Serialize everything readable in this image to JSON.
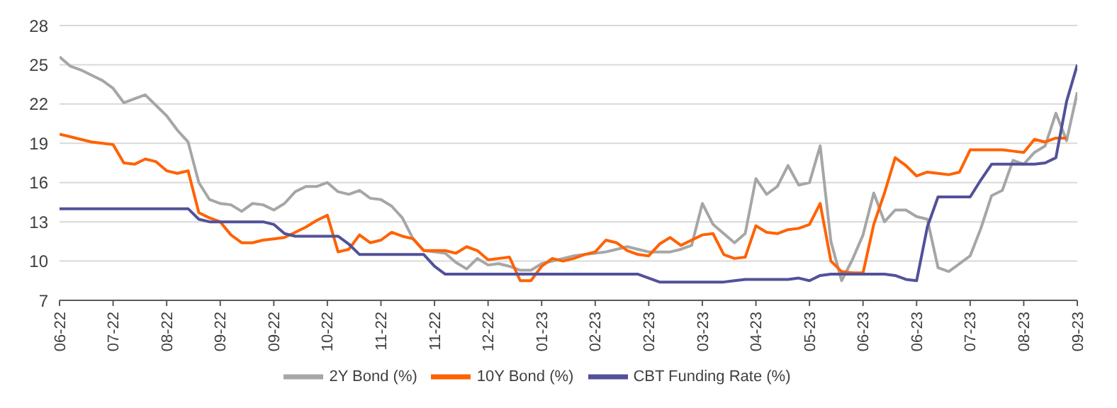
{
  "chart_data": {
    "type": "line",
    "ylim": [
      7,
      28
    ],
    "yticks": [
      7,
      10,
      13,
      16,
      19,
      22,
      25,
      28
    ],
    "categories": [
      "06-22",
      null,
      null,
      null,
      null,
      "07-22",
      null,
      null,
      null,
      null,
      "08-22",
      null,
      null,
      null,
      null,
      "09-22",
      null,
      null,
      null,
      null,
      "09-22",
      null,
      null,
      null,
      null,
      "10-22",
      null,
      null,
      null,
      null,
      "11-22",
      null,
      null,
      null,
      null,
      "11-22",
      null,
      null,
      null,
      null,
      "12-22",
      null,
      null,
      null,
      null,
      "01-23",
      null,
      null,
      null,
      null,
      "02-23",
      null,
      null,
      null,
      null,
      "02-23",
      null,
      null,
      null,
      null,
      "03-23",
      null,
      null,
      null,
      null,
      "04-23",
      null,
      null,
      null,
      null,
      "05-23",
      null,
      null,
      null,
      null,
      "06-23",
      null,
      null,
      null,
      null,
      "06-23",
      null,
      null,
      null,
      null,
      "07-23",
      null,
      null,
      null,
      null,
      "08-23",
      null,
      null,
      null,
      null,
      "09-23"
    ],
    "grid": "y",
    "legend": "bottom",
    "marker": "none",
    "line_style": "solid",
    "series": [
      {
        "name": "2Y Bond (%)",
        "color": "#a6a6a6",
        "values": [
          25.6,
          24.9,
          24.6,
          24.2,
          23.8,
          23.2,
          22.1,
          22.4,
          22.7,
          21.9,
          21.1,
          20.0,
          19.1,
          16.0,
          14.7,
          14.4,
          14.3,
          13.8,
          14.4,
          14.3,
          13.9,
          14.4,
          15.3,
          15.7,
          15.7,
          16.0,
          15.3,
          15.1,
          15.4,
          14.8,
          14.7,
          14.2,
          13.3,
          11.7,
          10.8,
          10.7,
          10.6,
          9.9,
          9.4,
          10.2,
          9.7,
          9.8,
          9.6,
          9.3,
          9.3,
          9.8,
          10.0,
          10.2,
          10.4,
          10.5,
          10.6,
          10.7,
          10.9,
          11.1,
          10.9,
          10.7,
          10.7,
          10.7,
          10.9,
          11.2,
          14.4,
          12.8,
          12.1,
          11.4,
          12.1,
          16.3,
          15.1,
          15.7,
          17.3,
          15.8,
          16.0,
          18.8,
          11.5,
          8.5,
          10.1,
          12.0,
          15.2,
          13.0,
          13.9,
          13.9,
          13.4,
          13.2,
          9.5,
          9.2,
          9.8,
          10.4,
          12.5,
          15.0,
          15.4,
          17.7,
          17.4,
          18.3,
          18.8,
          21.3,
          19.2,
          22.9
        ]
      },
      {
        "name": "10Y Bond (%)",
        "color": "#ff6200",
        "values": [
          19.7,
          19.5,
          19.3,
          19.1,
          19.0,
          18.9,
          17.5,
          17.4,
          17.8,
          17.6,
          16.9,
          16.7,
          16.9,
          13.7,
          13.3,
          13.0,
          12.0,
          11.4,
          11.4,
          11.6,
          11.7,
          11.8,
          12.2,
          12.6,
          13.1,
          13.5,
          10.7,
          10.9,
          12.0,
          11.4,
          11.6,
          12.2,
          11.9,
          11.7,
          10.8,
          10.8,
          10.8,
          10.6,
          11.1,
          10.8,
          10.1,
          10.2,
          10.3,
          8.5,
          8.5,
          9.6,
          10.2,
          10.0,
          10.2,
          10.5,
          10.7,
          11.6,
          11.4,
          10.8,
          10.5,
          10.4,
          11.3,
          11.8,
          11.2,
          11.6,
          12.0,
          12.1,
          10.5,
          10.2,
          10.3,
          12.7,
          12.2,
          12.1,
          12.4,
          12.5,
          12.8,
          14.4,
          10.0,
          9.2,
          9.1,
          9.1,
          12.8,
          15.2,
          17.9,
          17.3,
          16.5,
          16.8,
          16.7,
          16.6,
          16.8,
          18.5,
          18.5,
          18.5,
          18.5,
          18.4,
          18.3,
          19.3,
          19.1,
          19.4,
          19.4,
          null
        ]
      },
      {
        "name": "CBT Funding Rate (%)",
        "color": "#525199",
        "values": [
          14.0,
          14.0,
          14.0,
          14.0,
          14.0,
          14.0,
          14.0,
          14.0,
          14.0,
          14.0,
          14.0,
          14.0,
          14.0,
          13.2,
          13.0,
          13.0,
          13.0,
          13.0,
          13.0,
          13.0,
          12.8,
          12.1,
          11.9,
          11.9,
          11.9,
          11.9,
          11.9,
          11.3,
          10.5,
          10.5,
          10.5,
          10.5,
          10.5,
          10.5,
          10.5,
          9.6,
          9.0,
          9.0,
          9.0,
          9.0,
          9.0,
          9.0,
          9.0,
          9.0,
          9.0,
          9.0,
          9.0,
          9.0,
          9.0,
          9.0,
          9.0,
          9.0,
          9.0,
          9.0,
          9.0,
          8.7,
          8.4,
          8.4,
          8.4,
          8.4,
          8.4,
          8.4,
          8.4,
          8.5,
          8.6,
          8.6,
          8.6,
          8.6,
          8.6,
          8.7,
          8.5,
          8.9,
          9.0,
          9.0,
          9.0,
          9.0,
          9.0,
          9.0,
          8.9,
          8.6,
          8.5,
          12.6,
          14.9,
          14.9,
          14.9,
          14.9,
          16.2,
          17.4,
          17.4,
          17.4,
          17.4,
          17.4,
          17.5,
          17.9,
          22.2,
          25.0
        ]
      }
    ]
  }
}
